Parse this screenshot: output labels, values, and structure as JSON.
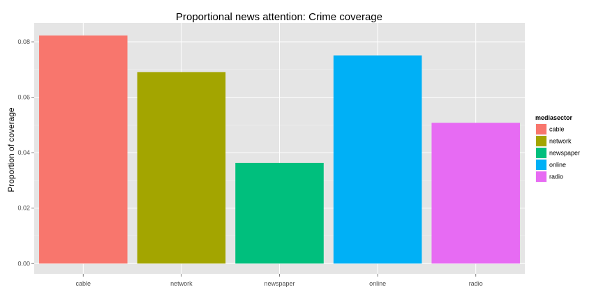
{
  "chart_data": {
    "type": "bar",
    "title": "Proportional news attention: Crime coverage",
    "xlabel": "",
    "ylabel": "Proportion of coverage",
    "categories": [
      "cable",
      "network",
      "newspaper",
      "online",
      "radio"
    ],
    "values": [
      0.0823,
      0.0691,
      0.0363,
      0.0751,
      0.0508
    ],
    "colors": [
      "#F8766D",
      "#A3A500",
      "#00BF7D",
      "#00B0F6",
      "#E76BF3"
    ],
    "ylim": [
      -0.0037,
      0.0868
    ],
    "yticks": [
      0.0,
      0.02,
      0.04,
      0.06,
      0.08
    ],
    "ytick_labels": [
      "0.00",
      "0.02",
      "0.04",
      "0.06",
      "0.08"
    ],
    "grid": true,
    "legend": {
      "title": "mediasector",
      "placement": "right",
      "entries": [
        "cable",
        "network",
        "newspaper",
        "online",
        "radio"
      ]
    },
    "panel_background": "#E5E5E5",
    "grid_color": "#FFFFFF"
  }
}
